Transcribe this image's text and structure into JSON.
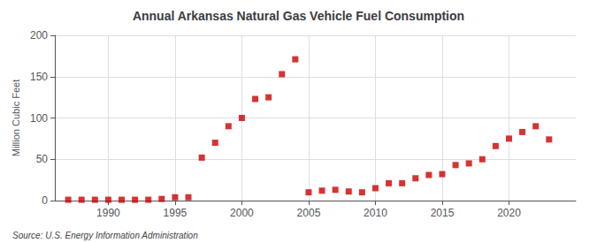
{
  "chart_data": {
    "type": "scatter",
    "title": "Annual Arkansas Natural Gas Vehicle Fuel Consumption",
    "ylabel": "Million Cubic Feet",
    "annotation": "Source: U.S. Energy Information Administration",
    "color": "#cc0000",
    "marker": "square",
    "grid": true,
    "xlim": [
      1986,
      2025
    ],
    "xticks": [
      1990,
      1995,
      2000,
      2005,
      2010,
      2015,
      2020
    ],
    "ylim": [
      0,
      200
    ],
    "yticks": [
      0,
      50,
      100,
      150,
      200
    ],
    "x": [
      1987,
      1988,
      1989,
      1990,
      1991,
      1992,
      1993,
      1994,
      1995,
      1996,
      1997,
      1998,
      1999,
      2000,
      2001,
      2002,
      2003,
      2004,
      2005,
      2006,
      2007,
      2008,
      2009,
      2010,
      2011,
      2012,
      2013,
      2014,
      2015,
      2016,
      2017,
      2018,
      2019,
      2020,
      2021,
      2022,
      2023
    ],
    "values": [
      1,
      1,
      1,
      1,
      1,
      1,
      1,
      2,
      4,
      4,
      52,
      70,
      90,
      100,
      123,
      125,
      153,
      171,
      10,
      12,
      13,
      11,
      10,
      15,
      21,
      21,
      27,
      31,
      32,
      43,
      45,
      50,
      66,
      75,
      83,
      90,
      74
    ]
  }
}
